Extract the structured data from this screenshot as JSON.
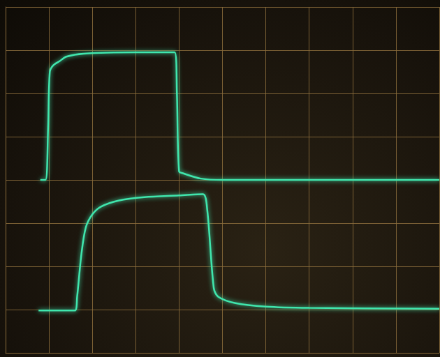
{
  "chart_data": {
    "type": "line",
    "xlim": [
      0,
      10
    ],
    "xticks": [
      0,
      1,
      2,
      3,
      4,
      5,
      6,
      7,
      8,
      9,
      10
    ],
    "ylim": [
      0,
      8
    ],
    "yticks": [
      0,
      1,
      2,
      3,
      4,
      5,
      6,
      7,
      8
    ],
    "grid": true,
    "tick_labels": false,
    "marker": "none",
    "line_style": "solid",
    "series": [
      {
        "color": "#3fe6ad",
        "x": [
          0.8,
          0.92,
          0.98,
          1.02,
          1.1,
          1.25,
          1.4,
          1.8,
          3.0,
          3.9,
          3.95,
          4.0,
          4.1,
          4.5,
          5.0,
          10.0
        ],
        "values": [
          4.0,
          4.0,
          5.2,
          6.5,
          6.65,
          6.75,
          6.85,
          6.92,
          6.95,
          6.95,
          6.0,
          4.2,
          4.15,
          4.03,
          4.0,
          4.0
        ]
      },
      {
        "color": "#3fe6ad",
        "x": [
          0.76,
          1.6,
          1.65,
          1.75,
          1.85,
          2.0,
          2.2,
          2.6,
          3.2,
          4.0,
          4.55,
          4.65,
          4.8,
          4.9,
          5.3,
          6.0,
          7.0,
          10.0
        ],
        "values": [
          0.98,
          0.98,
          1.3,
          2.3,
          2.9,
          3.2,
          3.38,
          3.52,
          3.6,
          3.64,
          3.67,
          3.3,
          1.5,
          1.3,
          1.15,
          1.07,
          1.04,
          1.02
        ]
      }
    ]
  }
}
